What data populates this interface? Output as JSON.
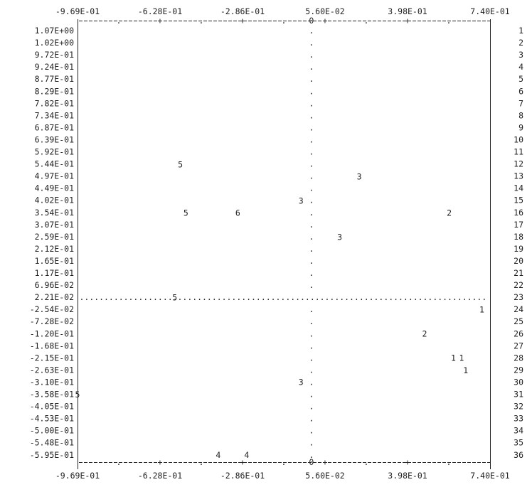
{
  "chart_data": {
    "type": "scatter",
    "title": "",
    "xlabel": "",
    "ylabel": "",
    "x_ticks": [
      "-9.69E-01",
      "-6.28E-01",
      "-2.86E-01",
      "5.60E-02",
      "3.98E-01",
      "7.40E-01"
    ],
    "y_ticks": [
      "1.07E+00",
      "1.02E+00",
      "9.72E-01",
      "9.24E-01",
      "8.77E-01",
      "8.29E-01",
      "7.82E-01",
      "7.34E-01",
      "6.87E-01",
      "6.39E-01",
      "5.92E-01",
      "5.44E-01",
      "4.97E-01",
      "4.49E-01",
      "4.02E-01",
      "3.54E-01",
      "3.07E-01",
      "2.59E-01",
      "2.12E-01",
      "1.65E-01",
      "1.17E-01",
      "6.96E-02",
      "2.21E-02",
      "-2.54E-02",
      "-7.28E-02",
      "-1.20E-01",
      "-1.68E-01",
      "-2.15E-01",
      "-2.63E-01",
      "-3.10E-01",
      "-3.58E-01",
      "-4.05E-01",
      "-4.53E-01",
      "-5.00E-01",
      "-5.48E-01",
      "-5.95E-01"
    ],
    "row_numbers": [
      "1",
      "2",
      "3",
      "4",
      "5",
      "6",
      "7",
      "8",
      "9",
      "10",
      "11",
      "12",
      "13",
      "14",
      "15",
      "16",
      "17",
      "18",
      "19",
      "20",
      "21",
      "22",
      "23",
      "24",
      "25",
      "26",
      "27",
      "28",
      "29",
      "30",
      "31",
      "32",
      "33",
      "34",
      "35",
      "36"
    ],
    "x_range": [
      -0.969,
      0.74
    ],
    "zero_tick": "0",
    "zero_x": 0.0,
    "zero_y_row": 23,
    "points": [
      {
        "label": "5",
        "x": -0.543,
        "y": 0.544
      },
      {
        "label": "3",
        "x": 0.198,
        "y": 0.497
      },
      {
        "label": "3",
        "x": -0.043,
        "y": 0.402
      },
      {
        "label": "5",
        "x": -0.52,
        "y": 0.354
      },
      {
        "label": "6",
        "x": -0.305,
        "y": 0.354
      },
      {
        "label": "2",
        "x": 0.571,
        "y": 0.354
      },
      {
        "label": "3",
        "x": 0.117,
        "y": 0.259
      },
      {
        "label": "5",
        "x": -0.566,
        "y": 0.0221
      },
      {
        "label": "1",
        "x": 0.706,
        "y": -0.0254
      },
      {
        "label": "2",
        "x": 0.469,
        "y": -0.12
      },
      {
        "label": "1",
        "x": 0.588,
        "y": -0.215
      },
      {
        "label": "1",
        "x": 0.622,
        "y": -0.215
      },
      {
        "label": "1",
        "x": 0.639,
        "y": -0.263
      },
      {
        "label": "3",
        "x": -0.043,
        "y": -0.31
      },
      {
        "label": "5",
        "x": -0.969,
        "y": -0.358
      },
      {
        "label": "4",
        "x": -0.386,
        "y": -0.595
      },
      {
        "label": "4",
        "x": -0.268,
        "y": -0.595
      }
    ],
    "label_colors": {
      "1": "#222222",
      "2": "#e2231a",
      "3": "#2a9a2a",
      "4": "#1a1aee",
      "5": "#2b9be3",
      "6": "#a020c0"
    },
    "grid": false,
    "legend": "none"
  }
}
